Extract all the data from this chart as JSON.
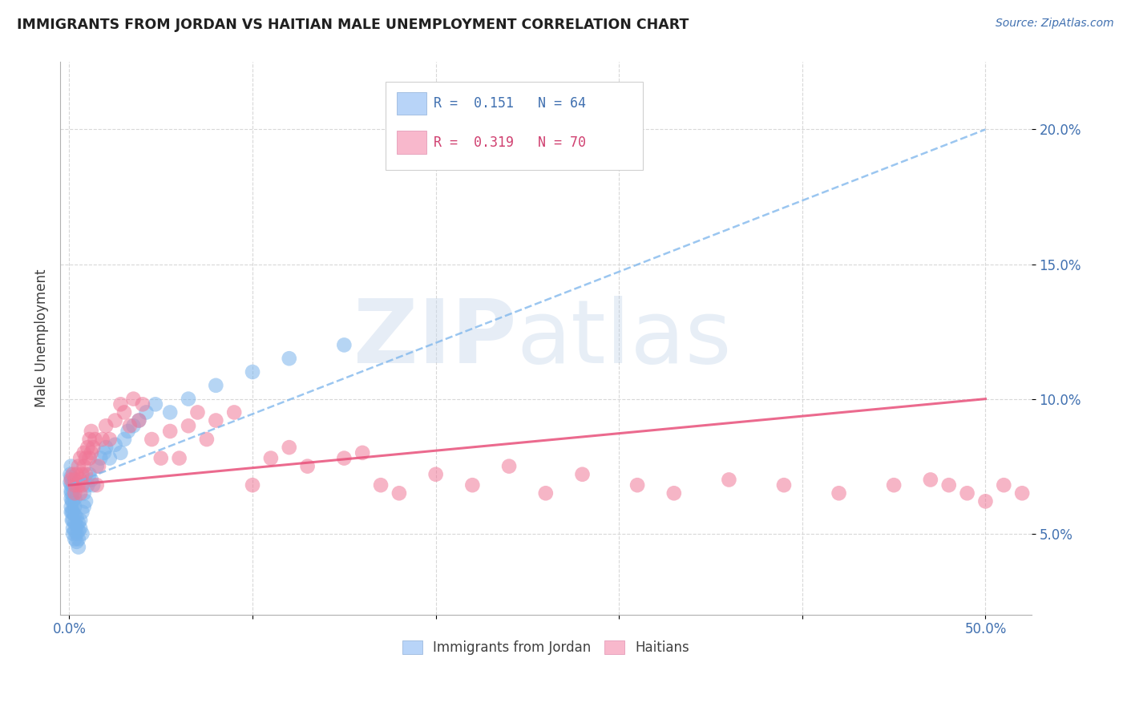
{
  "title": "IMMIGRANTS FROM JORDAN VS HAITIAN MALE UNEMPLOYMENT CORRELATION CHART",
  "source": "Source: ZipAtlas.com",
  "ylabel": "Male Unemployment",
  "scatter_color_jordan": "#7ab4ec",
  "scatter_color_haitian": "#f07898",
  "trendline_color_jordan": "#7ab4ec",
  "trendline_color_haitian": "#e8507a",
  "legend_color1": "#b8d4f8",
  "legend_color2": "#f8b8cc",
  "watermark_zip_color": "#c8d8ec",
  "watermark_atlas_color": "#b0c8e4",
  "background_color": "#ffffff",
  "grid_color": "#d8d8d8",
  "title_color": "#202020",
  "source_color": "#4070b0",
  "ytick_color": "#4070b0",
  "xtick_color": "#4070b0",
  "ylabel_color": "#404040",
  "jordan_x": [
    0.0005,
    0.0005,
    0.001,
    0.001,
    0.001,
    0.001,
    0.001,
    0.001,
    0.001,
    0.001,
    0.0015,
    0.0015,
    0.0015,
    0.002,
    0.002,
    0.002,
    0.002,
    0.002,
    0.002,
    0.002,
    0.003,
    0.003,
    0.003,
    0.003,
    0.003,
    0.003,
    0.004,
    0.004,
    0.004,
    0.004,
    0.005,
    0.005,
    0.005,
    0.005,
    0.006,
    0.006,
    0.007,
    0.007,
    0.008,
    0.008,
    0.009,
    0.01,
    0.011,
    0.012,
    0.013,
    0.015,
    0.017,
    0.019,
    0.02,
    0.022,
    0.025,
    0.028,
    0.03,
    0.032,
    0.035,
    0.038,
    0.042,
    0.047,
    0.055,
    0.065,
    0.08,
    0.1,
    0.12,
    0.15
  ],
  "jordan_y": [
    0.069,
    0.072,
    0.065,
    0.068,
    0.071,
    0.075,
    0.06,
    0.063,
    0.066,
    0.058,
    0.058,
    0.062,
    0.055,
    0.058,
    0.062,
    0.065,
    0.068,
    0.055,
    0.052,
    0.05,
    0.048,
    0.051,
    0.054,
    0.057,
    0.06,
    0.063,
    0.047,
    0.05,
    0.053,
    0.056,
    0.045,
    0.048,
    0.051,
    0.054,
    0.052,
    0.055,
    0.05,
    0.058,
    0.06,
    0.065,
    0.062,
    0.068,
    0.072,
    0.07,
    0.068,
    0.075,
    0.078,
    0.08,
    0.082,
    0.078,
    0.083,
    0.08,
    0.085,
    0.088,
    0.09,
    0.092,
    0.095,
    0.098,
    0.095,
    0.1,
    0.105,
    0.11,
    0.115,
    0.12
  ],
  "haitian_x": [
    0.001,
    0.002,
    0.003,
    0.003,
    0.003,
    0.004,
    0.005,
    0.005,
    0.006,
    0.006,
    0.006,
    0.007,
    0.007,
    0.008,
    0.008,
    0.009,
    0.009,
    0.01,
    0.011,
    0.011,
    0.012,
    0.012,
    0.013,
    0.014,
    0.015,
    0.016,
    0.018,
    0.02,
    0.022,
    0.025,
    0.028,
    0.03,
    0.033,
    0.035,
    0.038,
    0.04,
    0.045,
    0.05,
    0.055,
    0.06,
    0.065,
    0.07,
    0.075,
    0.08,
    0.09,
    0.1,
    0.11,
    0.12,
    0.13,
    0.15,
    0.16,
    0.17,
    0.18,
    0.2,
    0.22,
    0.24,
    0.26,
    0.28,
    0.31,
    0.33,
    0.36,
    0.39,
    0.42,
    0.45,
    0.47,
    0.48,
    0.49,
    0.5,
    0.51,
    0.52
  ],
  "haitian_y": [
    0.07,
    0.072,
    0.065,
    0.07,
    0.068,
    0.072,
    0.068,
    0.075,
    0.065,
    0.07,
    0.078,
    0.072,
    0.068,
    0.075,
    0.08,
    0.072,
    0.078,
    0.082,
    0.078,
    0.085,
    0.08,
    0.088,
    0.082,
    0.085,
    0.068,
    0.075,
    0.085,
    0.09,
    0.085,
    0.092,
    0.098,
    0.095,
    0.09,
    0.1,
    0.092,
    0.098,
    0.085,
    0.078,
    0.088,
    0.078,
    0.09,
    0.095,
    0.085,
    0.092,
    0.095,
    0.068,
    0.078,
    0.082,
    0.075,
    0.078,
    0.08,
    0.068,
    0.065,
    0.072,
    0.068,
    0.075,
    0.065,
    0.072,
    0.068,
    0.065,
    0.07,
    0.068,
    0.065,
    0.068,
    0.07,
    0.068,
    0.065,
    0.062,
    0.068,
    0.065
  ],
  "jordan_trend_x": [
    0.0,
    0.5
  ],
  "jordan_trend_y": [
    0.068,
    0.2
  ],
  "haitian_trend_x": [
    0.0,
    0.5
  ],
  "haitian_trend_y": [
    0.068,
    0.1
  ],
  "xlim": [
    -0.005,
    0.525
  ],
  "ylim": [
    0.02,
    0.225
  ],
  "xticks": [
    0.0,
    0.1,
    0.2,
    0.3,
    0.4,
    0.5
  ],
  "yticks": [
    0.05,
    0.1,
    0.15,
    0.2
  ],
  "ytick_labels": [
    "5.0%",
    "10.0%",
    "15.0%",
    "20.0%"
  ]
}
